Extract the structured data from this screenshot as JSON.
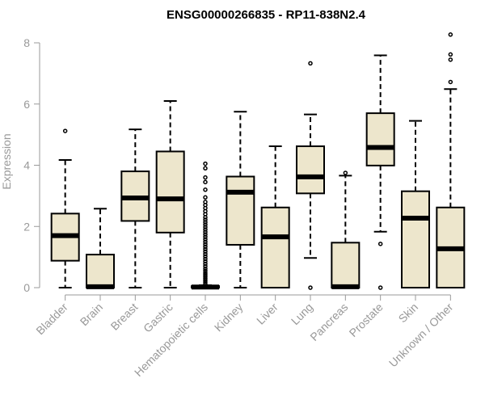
{
  "chart_data": {
    "type": "boxplot",
    "title": "ENSG00000266835 - RP11-838N2.4",
    "ylabel": "Expression",
    "xlabel": "",
    "ylim": [
      0,
      8
    ],
    "yticks": [
      0,
      2,
      4,
      6,
      8
    ],
    "grid": false,
    "colors": {
      "box_fill": "#ede6cc",
      "box_stroke": "#000000",
      "axis": "#999999"
    },
    "categories": [
      "Bladder",
      "Brain",
      "Breast",
      "Gastric",
      "Hematopoietic cells",
      "Kidney",
      "Liver",
      "Lung",
      "Pancreas",
      "Prostate",
      "Skin",
      "Unknown / Other"
    ],
    "boxes": [
      {
        "lower_whisker": 0.0,
        "q1": 0.88,
        "median": 1.7,
        "q3": 2.42,
        "upper_whisker": 4.17,
        "outliers": [
          5.12
        ]
      },
      {
        "lower_whisker": 0.0,
        "q1": 0.0,
        "median": 0.03,
        "q3": 1.08,
        "upper_whisker": 2.58,
        "outliers": []
      },
      {
        "lower_whisker": 0.0,
        "q1": 2.18,
        "median": 2.93,
        "q3": 3.8,
        "upper_whisker": 5.17,
        "outliers": []
      },
      {
        "lower_whisker": 0.0,
        "q1": 1.8,
        "median": 2.9,
        "q3": 4.45,
        "upper_whisker": 6.1,
        "outliers": []
      },
      {
        "lower_whisker": 0.0,
        "q1": 0.0,
        "median": 0.02,
        "q3": 0.05,
        "upper_whisker": 0.08,
        "outliers": [
          0.12,
          0.18,
          0.24,
          0.3,
          0.36,
          0.42,
          0.48,
          0.55,
          0.62,
          0.7,
          0.78,
          0.86,
          0.94,
          1.02,
          1.1,
          1.18,
          1.26,
          1.34,
          1.42,
          1.5,
          1.58,
          1.66,
          1.74,
          1.82,
          1.9,
          1.98,
          2.06,
          2.14,
          2.22,
          2.3,
          2.4,
          2.5,
          2.6,
          2.7,
          2.8,
          2.95,
          3.2,
          3.45,
          3.6,
          3.9,
          4.05
        ]
      },
      {
        "lower_whisker": 0.0,
        "q1": 1.4,
        "median": 3.12,
        "q3": 3.63,
        "upper_whisker": 5.75,
        "outliers": []
      },
      {
        "lower_whisker": 0.0,
        "q1": 0.0,
        "median": 1.66,
        "q3": 2.62,
        "upper_whisker": 4.62,
        "outliers": []
      },
      {
        "lower_whisker": 0.97,
        "q1": 3.08,
        "median": 3.62,
        "q3": 4.62,
        "upper_whisker": 5.66,
        "outliers": [
          0.0,
          7.33
        ]
      },
      {
        "lower_whisker": 0.0,
        "q1": 0.0,
        "median": 0.03,
        "q3": 1.47,
        "upper_whisker": 3.66,
        "outliers": [
          3.75
        ]
      },
      {
        "lower_whisker": 1.83,
        "q1": 3.99,
        "median": 4.58,
        "q3": 5.7,
        "upper_whisker": 7.59,
        "outliers": [
          0.0,
          1.43
        ]
      },
      {
        "lower_whisker": 0.0,
        "q1": 0.0,
        "median": 2.27,
        "q3": 3.15,
        "upper_whisker": 5.45,
        "outliers": []
      },
      {
        "lower_whisker": 0.0,
        "q1": 0.0,
        "median": 1.27,
        "q3": 2.62,
        "upper_whisker": 6.49,
        "outliers": [
          6.72,
          7.45,
          7.62,
          8.27
        ]
      }
    ]
  }
}
